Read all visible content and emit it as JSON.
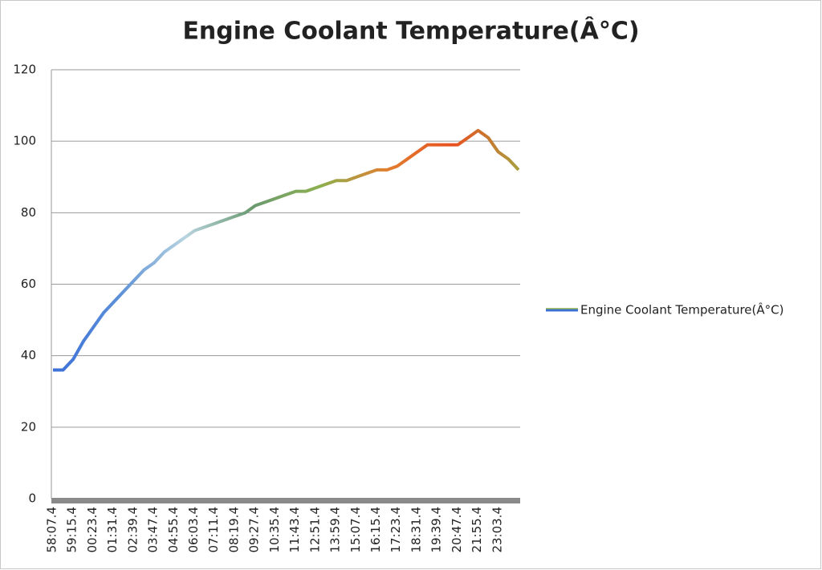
{
  "chart_data": {
    "type": "line",
    "title": "Engine Coolant Temperature(Â°C)",
    "categories": [
      "58:07.4",
      null,
      "59:15.4",
      null,
      "00:23.4",
      null,
      "01:31.4",
      null,
      "02:39.4",
      null,
      "03:47.4",
      null,
      "04:55.4",
      null,
      "06:03.4",
      null,
      "07:11.4",
      null,
      "08:19.4",
      null,
      "09:27.4",
      null,
      "10:35.4",
      null,
      "11:43.4",
      null,
      "12:51.4",
      null,
      "13:59.4",
      null,
      "15:07.4",
      null,
      "16:15.4",
      null,
      "17:23.4",
      null,
      "18:31.4",
      null,
      "19:39.4",
      null,
      "20:47.4",
      null,
      "21:55.4",
      null,
      "23:03.4",
      null,
      null
    ],
    "series": [
      {
        "name": "Engine Coolant Temperature(Â°C)",
        "gradient": [
          "#3a6fd8",
          "#5b8fd8",
          "#b8d4e0",
          "#6a9a70",
          "#8cb050",
          "#e08030",
          "#e85020",
          "#a8a040"
        ],
        "values": [
          36,
          36,
          39,
          44,
          48,
          52,
          55,
          58,
          61,
          64,
          66,
          69,
          71,
          73,
          75,
          76,
          77,
          78,
          79,
          80,
          82,
          83,
          84,
          85,
          86,
          86,
          87,
          88,
          89,
          89,
          90,
          91,
          92,
          92,
          93,
          95,
          97,
          99,
          99,
          99,
          99,
          101,
          103,
          101,
          97,
          95,
          92
        ]
      }
    ],
    "ylim": [
      0,
      120
    ],
    "yticks": [
      0,
      20,
      40,
      60,
      80,
      100,
      120
    ],
    "grid": true,
    "legend": "right"
  }
}
